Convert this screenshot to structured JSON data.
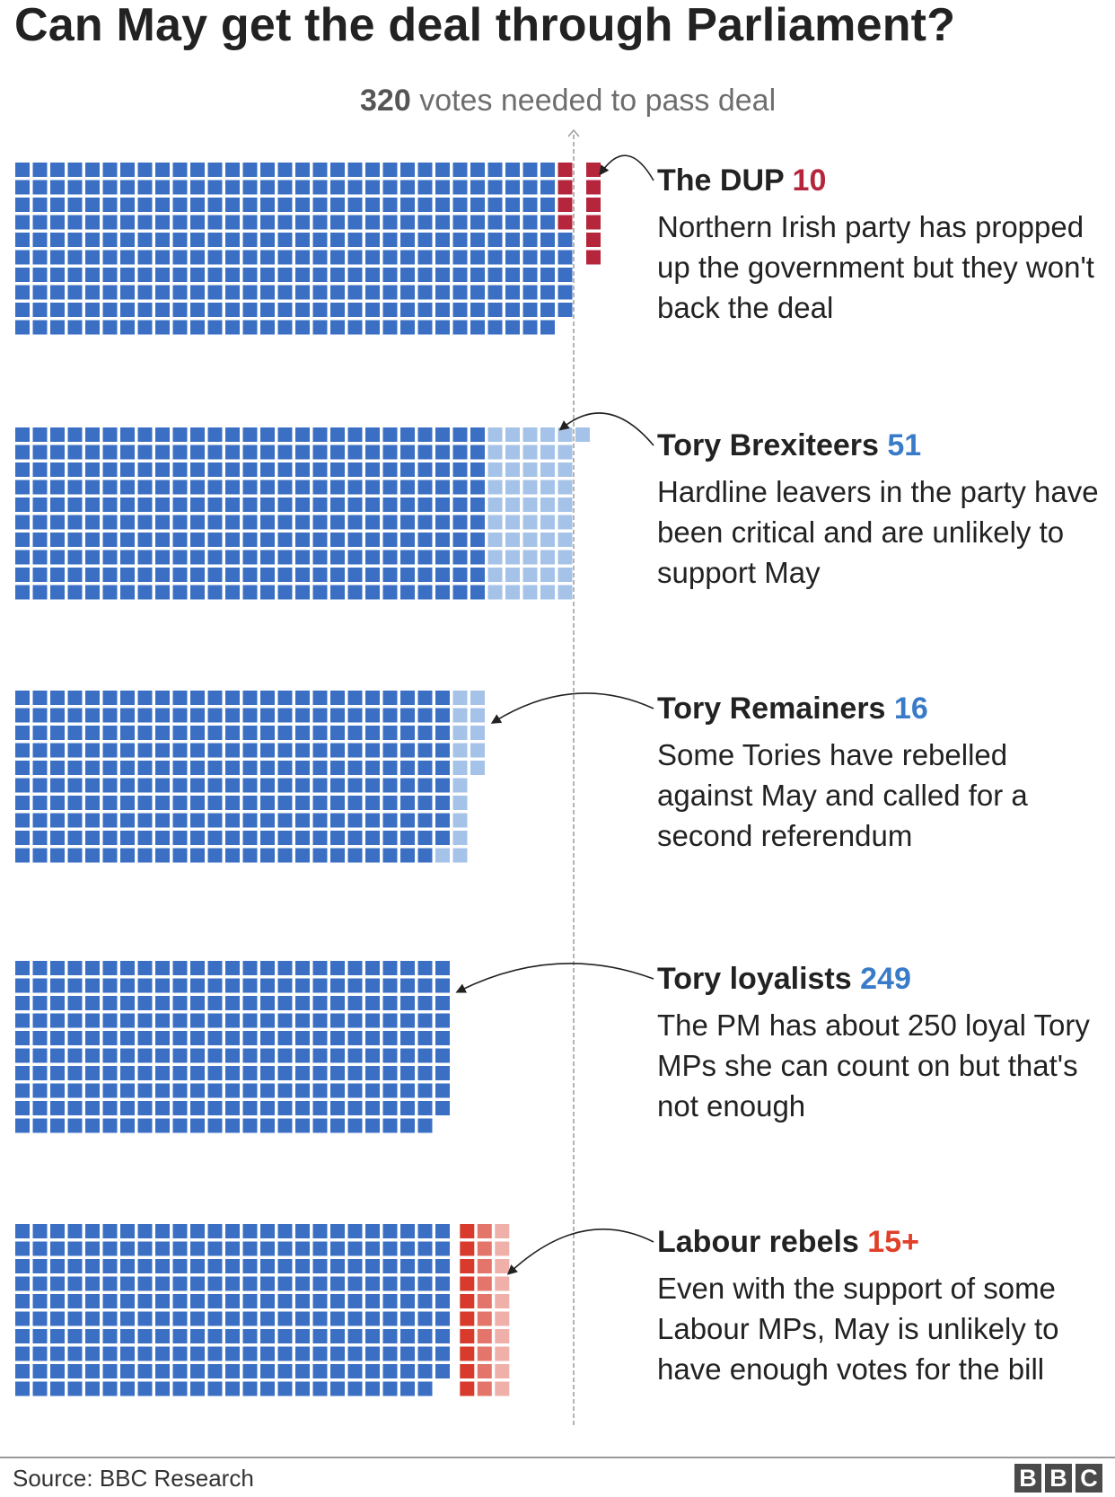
{
  "title": "Can May get the deal through Parliament?",
  "threshold": {
    "value": "320",
    "text": "votes needed to pass deal"
  },
  "colors": {
    "tory": "#3a6fc4",
    "tory_light": "#a5c3e8",
    "dup": "#b5263c",
    "labour": "#d83a2b",
    "label_red": "#b5263c",
    "label_blue": "#3a7bc8",
    "label_labour": "#e0402a"
  },
  "chart_data": {
    "type": "waffle",
    "unit": "1 square = 1 MP",
    "threshold": 320,
    "scenarios": [
      {
        "name": "The DUP",
        "value": "10",
        "base": 319,
        "added": 10,
        "added_color": "dup",
        "description": "Northern Irish party has propped up the government but they won't back the deal"
      },
      {
        "name": "Tory Brexiteers",
        "value": "51",
        "base": 270,
        "added": 51,
        "added_color": "tory_light",
        "description": "Hardline leavers in the party have been critical and are unlikely to support May"
      },
      {
        "name": "Tory Remainers",
        "value": "16",
        "base": 249,
        "added": 16,
        "added_color": "tory_light",
        "description": "Some Tories have rebelled against May and called for a second referendum"
      },
      {
        "name": "Tory loyalists",
        "value": "249",
        "base": 249,
        "added": 0,
        "added_color": "tory",
        "description": "The PM has about 250 loyal Tory MPs she can count on but that's not enough"
      },
      {
        "name": "Labour rebels",
        "value": "15+",
        "base": 249,
        "added": 15,
        "extra_fade": 15,
        "added_color": "labour",
        "description": "Even with the support of some Labour MPs, May is unlikely to have enough votes for the bill"
      }
    ]
  },
  "source": "Source: BBC Research",
  "logo": [
    "B",
    "B",
    "C"
  ]
}
